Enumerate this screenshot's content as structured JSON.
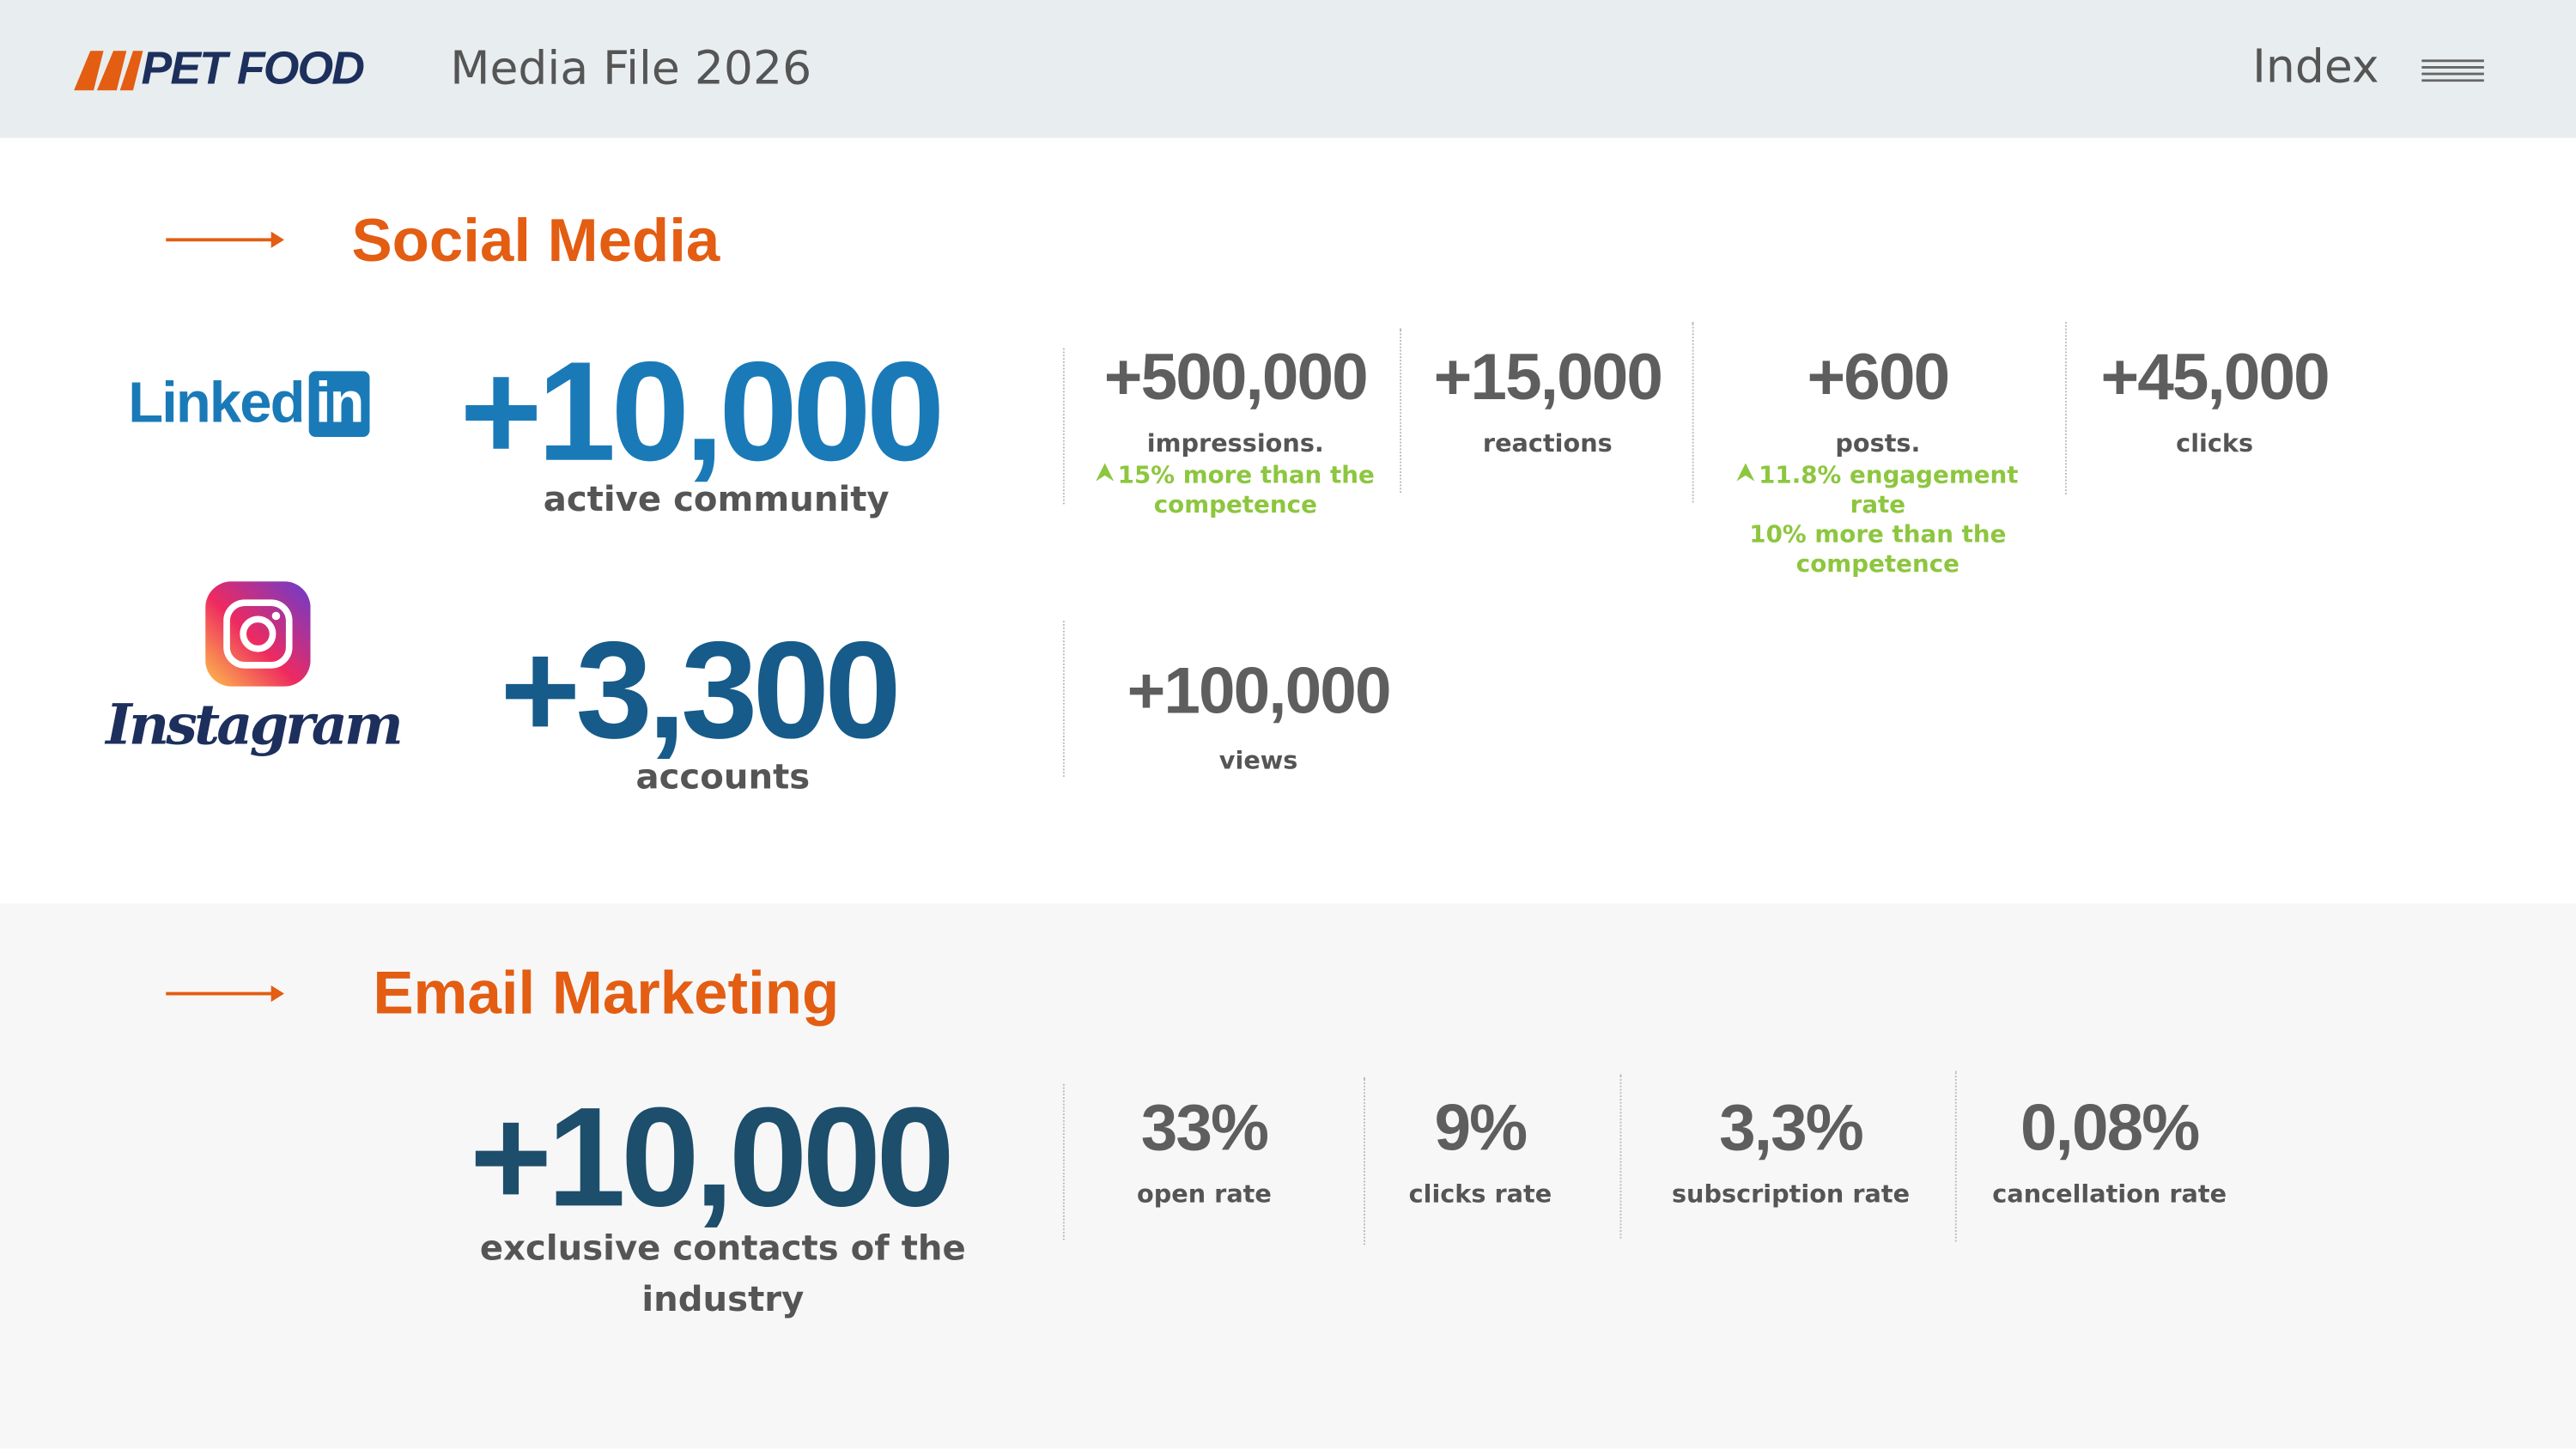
{
  "header": {
    "logo": "PET FOOD",
    "subtitle": "Media File 2026",
    "nav": "Index"
  },
  "social_media": {
    "title": "Social Media",
    "linkedin": {
      "brand": "Linked",
      "brand_badge": "in",
      "value": "+10,000",
      "label": "active community",
      "stats": [
        {
          "value": "+500,000",
          "label": "impressions.",
          "notes": [
            "15% more than the competence"
          ]
        },
        {
          "value": "+15,000",
          "label": "reactions",
          "notes": []
        },
        {
          "value": "+600",
          "label": "posts.",
          "notes": [
            "11.8% engagement rate",
            "10% more than the competence"
          ]
        },
        {
          "value": "+45,000",
          "label": "clicks",
          "notes": []
        }
      ]
    },
    "instagram": {
      "brand": "Instagram",
      "value": "+3,300",
      "label": "accounts",
      "stats": [
        {
          "value": "+100,000",
          "label": "views",
          "notes": []
        }
      ]
    }
  },
  "email_marketing": {
    "title": "Email Marketing",
    "value": "+10,000",
    "label": "exclusive contacts of the industry",
    "stats": [
      {
        "value": "33%",
        "label": "open rate"
      },
      {
        "value": "9%",
        "label": "clicks rate"
      },
      {
        "value": "3,3%",
        "label": "subscription rate"
      },
      {
        "value": "0,08%",
        "label": "cancellation rate"
      }
    ]
  }
}
